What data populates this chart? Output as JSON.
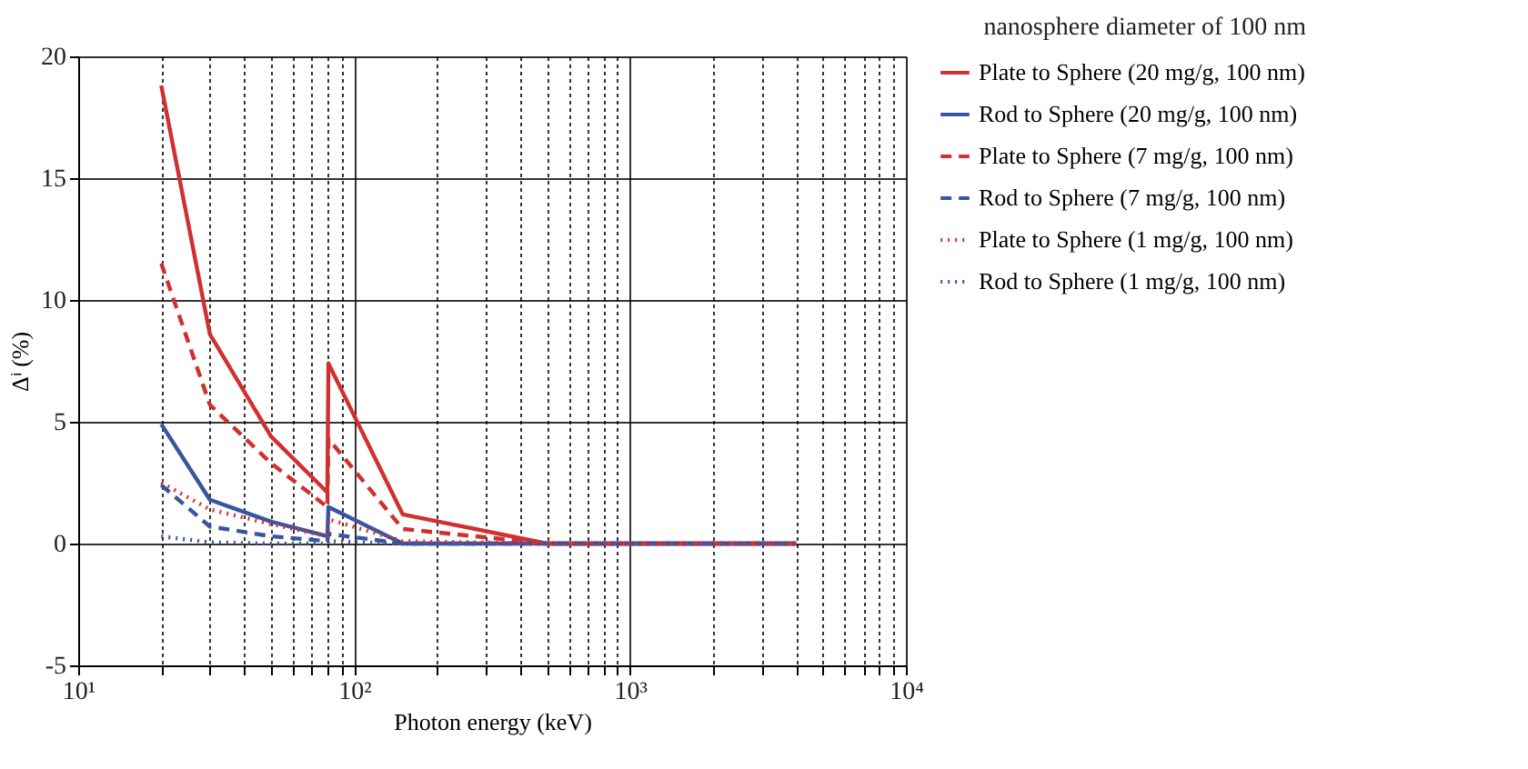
{
  "chart_data": {
    "type": "line",
    "xlabel": "Photon energy (keV)",
    "ylabel": "Δⁱ (%)",
    "annotations": [
      "nanosphere diameter of 100 nm"
    ],
    "log": "x",
    "grid": true,
    "legend": "right",
    "x": [
      20,
      30,
      50,
      80,
      80.7,
      150,
      500,
      4000
    ],
    "xlim": [
      10,
      10000
    ],
    "xticks": [
      {
        "value": 10,
        "label": "10¹"
      },
      {
        "value": 20,
        "label": null
      },
      {
        "value": 30,
        "label": null
      },
      {
        "value": 40,
        "label": null
      },
      {
        "value": 50,
        "label": null
      },
      {
        "value": 60,
        "label": null
      },
      {
        "value": 70,
        "label": null
      },
      {
        "value": 80,
        "label": null
      },
      {
        "value": 90,
        "label": null
      },
      {
        "value": 100,
        "label": "10²"
      },
      {
        "value": 200,
        "label": null
      },
      {
        "value": 300,
        "label": null
      },
      {
        "value": 400,
        "label": null
      },
      {
        "value": 500,
        "label": null
      },
      {
        "value": 600,
        "label": null
      },
      {
        "value": 700,
        "label": null
      },
      {
        "value": 800,
        "label": null
      },
      {
        "value": 900,
        "label": null
      },
      {
        "value": 1000,
        "label": "10³"
      },
      {
        "value": 2000,
        "label": null
      },
      {
        "value": 3000,
        "label": null
      },
      {
        "value": 4000,
        "label": null
      },
      {
        "value": 5000,
        "label": null
      },
      {
        "value": 6000,
        "label": null
      },
      {
        "value": 7000,
        "label": null
      },
      {
        "value": 8000,
        "label": null
      },
      {
        "value": 9000,
        "label": null
      },
      {
        "value": 10000,
        "label": "10⁴"
      }
    ],
    "ylim": [
      -5,
      20
    ],
    "yticks": [
      -5,
      0,
      5,
      10,
      15,
      20
    ],
    "series": [
      {
        "name": "Plate to Sphere (20 mg/g, 100 nm)",
        "color": "#d03030",
        "line_style": "solid",
        "values": [
          18.8,
          8.6,
          4.4,
          2.1,
          7.4,
          1.2,
          0,
          0
        ]
      },
      {
        "name": "Rod to Sphere (20 mg/g, 100 nm)",
        "color": "#3a55a0",
        "line_style": "solid",
        "values": [
          4.9,
          1.8,
          0.9,
          0.3,
          1.5,
          0,
          0,
          0
        ]
      },
      {
        "name": "Plate to Sphere (7 mg/g, 100 nm)",
        "color": "#d03030",
        "line_style": "dashed",
        "values": [
          11.5,
          5.7,
          3.3,
          1.5,
          4.3,
          0.6,
          0,
          0
        ]
      },
      {
        "name": "Rod to Sphere (7 mg/g, 100 nm)",
        "color": "#3a55a0",
        "line_style": "dashed",
        "values": [
          2.4,
          0.7,
          0.3,
          0.1,
          0.4,
          0,
          0,
          0
        ]
      },
      {
        "name": "Plate to Sphere (1 mg/g, 100 nm)",
        "color": "#d03030",
        "line_style": "dotted",
        "values": [
          2.5,
          1.4,
          0.8,
          0.3,
          1.0,
          0.1,
          0,
          0
        ]
      },
      {
        "name": "Rod to Sphere (1 mg/g, 100 nm)",
        "color": "#3a55a0",
        "line_style": "dotted",
        "values": [
          0.3,
          0.05,
          0,
          0,
          0.1,
          0,
          0,
          0
        ]
      }
    ]
  }
}
